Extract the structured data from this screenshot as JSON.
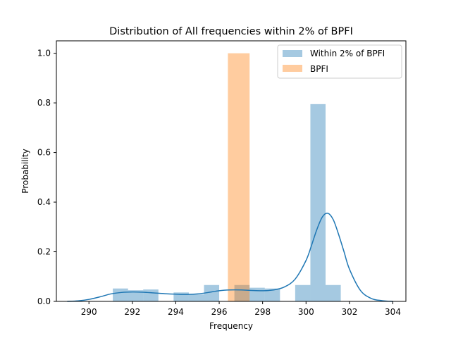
{
  "chart_data": {
    "type": "bar",
    "title": "Distribution of All frequencies within 2% of BPFI",
    "xlabel": "Frequency",
    "ylabel": "Probability",
    "xlim": [
      288.5,
      304.6
    ],
    "ylim": [
      0,
      1.05
    ],
    "x_ticks": [
      290,
      292,
      294,
      296,
      298,
      300,
      302,
      304
    ],
    "x_tick_labels": [
      "290",
      "292",
      "294",
      "296",
      "298",
      "300",
      "302",
      "304"
    ],
    "y_ticks": [
      0.0,
      0.2,
      0.4,
      0.6,
      0.8,
      1.0
    ],
    "y_tick_labels": [
      "0.0",
      "0.2",
      "0.4",
      "0.6",
      "0.8",
      "1.0"
    ],
    "grid": false,
    "legend_position": "top-right",
    "series": [
      {
        "name": "Within 2% of BPFI",
        "kind": "histogram",
        "color": "#1f77b4",
        "alpha": 0.4,
        "bins": [
          {
            "x0": 291.1,
            "x1": 291.8,
            "value": 0.052
          },
          {
            "x0": 291.8,
            "x1": 292.5,
            "value": 0.045
          },
          {
            "x0": 292.5,
            "x1": 293.2,
            "value": 0.048
          },
          {
            "x0": 293.2,
            "x1": 293.9,
            "value": 0.0
          },
          {
            "x0": 293.9,
            "x1": 294.6,
            "value": 0.036
          },
          {
            "x0": 294.6,
            "x1": 295.3,
            "value": 0.028
          },
          {
            "x0": 295.3,
            "x1": 296.0,
            "value": 0.066
          },
          {
            "x0": 296.0,
            "x1": 296.7,
            "value": 0.0
          },
          {
            "x0": 296.7,
            "x1": 297.4,
            "value": 0.066
          },
          {
            "x0": 297.4,
            "x1": 298.1,
            "value": 0.055
          },
          {
            "x0": 298.1,
            "x1": 298.8,
            "value": 0.052
          },
          {
            "x0": 298.8,
            "x1": 299.5,
            "value": 0.0
          },
          {
            "x0": 299.5,
            "x1": 300.2,
            "value": 0.066
          },
          {
            "x0": 300.2,
            "x1": 300.9,
            "value": 0.795
          },
          {
            "x0": 300.9,
            "x1": 301.6,
            "value": 0.066
          }
        ]
      },
      {
        "name": "BPFI",
        "kind": "histogram",
        "color": "#ff7f0e",
        "alpha": 0.4,
        "bins": [
          {
            "x0": 296.4,
            "x1": 297.4,
            "value": 1.0
          }
        ]
      },
      {
        "name": "KDE",
        "kind": "line",
        "color": "#1f77b4",
        "x": [
          289.0,
          289.5,
          290.0,
          290.5,
          291.0,
          291.5,
          292.0,
          292.5,
          293.0,
          293.5,
          294.0,
          294.5,
          295.0,
          295.5,
          296.0,
          296.5,
          297.0,
          297.5,
          298.0,
          298.5,
          299.0,
          299.5,
          300.0,
          300.25,
          300.5,
          300.75,
          301.0,
          301.25,
          301.5,
          301.75,
          302.0,
          302.5,
          303.0,
          303.5,
          304.0
        ],
        "y": [
          0.0,
          0.002,
          0.008,
          0.018,
          0.03,
          0.036,
          0.038,
          0.037,
          0.034,
          0.031,
          0.029,
          0.028,
          0.03,
          0.036,
          0.043,
          0.046,
          0.046,
          0.044,
          0.043,
          0.046,
          0.058,
          0.09,
          0.165,
          0.225,
          0.29,
          0.34,
          0.355,
          0.33,
          0.27,
          0.2,
          0.13,
          0.045,
          0.012,
          0.003,
          0.0
        ]
      }
    ]
  }
}
